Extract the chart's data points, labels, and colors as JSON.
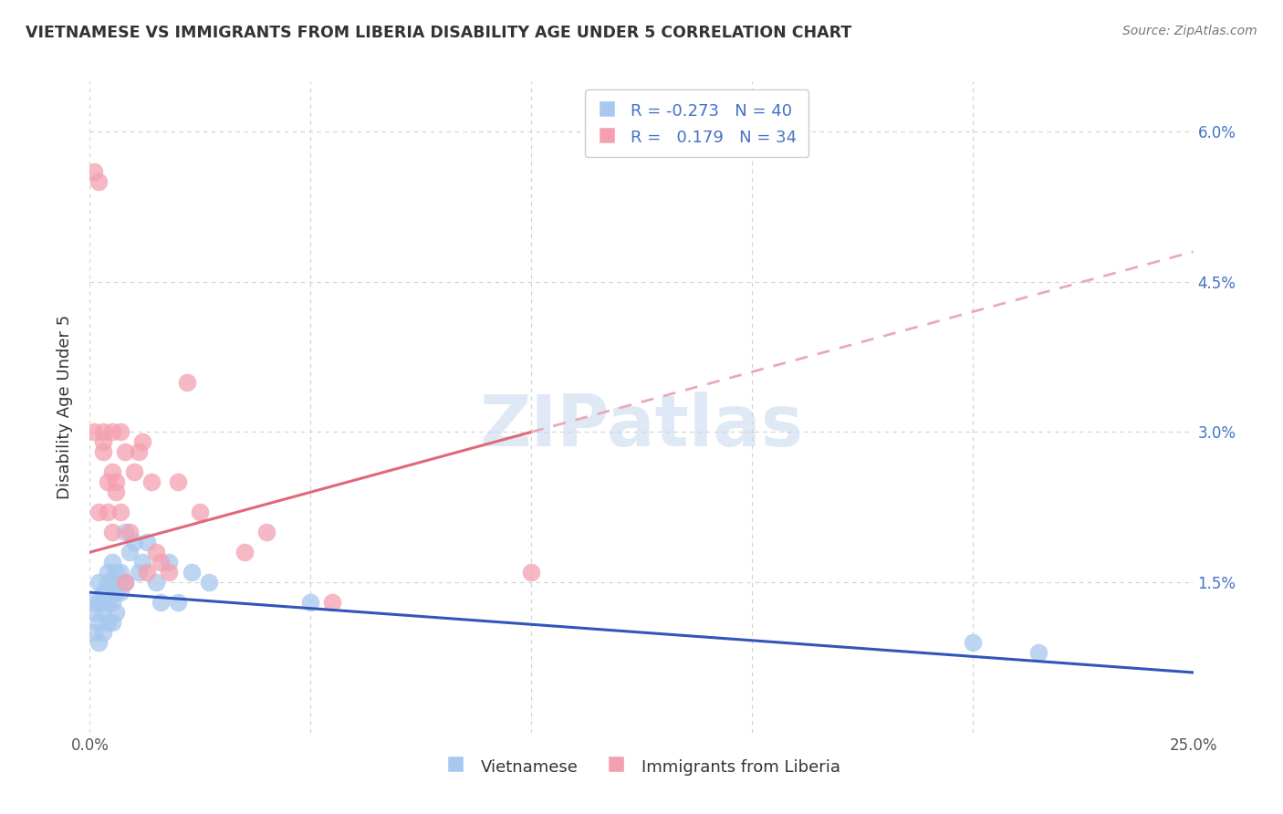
{
  "title": "VIETNAMESE VS IMMIGRANTS FROM LIBERIA DISABILITY AGE UNDER 5 CORRELATION CHART",
  "source": "Source: ZipAtlas.com",
  "ylabel_label": "Disability Age Under 5",
  "xlim": [
    0.0,
    0.25
  ],
  "ylim": [
    0.0,
    0.065
  ],
  "xtick_positions": [
    0.0,
    0.05,
    0.1,
    0.15,
    0.2,
    0.25
  ],
  "xtick_labels": [
    "0.0%",
    "",
    "",
    "",
    "",
    "25.0%"
  ],
  "ytick_positions": [
    0.0,
    0.015,
    0.03,
    0.045,
    0.06
  ],
  "ytick_labels_right": [
    "",
    "1.5%",
    "3.0%",
    "4.5%",
    "6.0%"
  ],
  "legend_entry1": "R = -0.273   N = 40",
  "legend_entry2": "R =   0.179   N = 34",
  "legend_label1": "Vietnamese",
  "legend_label2": "Immigrants from Liberia",
  "color_blue": "#A8C8EE",
  "color_pink": "#F4A0B0",
  "line_color_blue": "#3355BB",
  "line_color_pink": "#E06878",
  "line_color_pink_dashed": "#E8AABB",
  "background_color": "#FFFFFF",
  "grid_color": "#CCCCCC",
  "watermark": "ZIPatlas",
  "viet_x": [
    0.001,
    0.001,
    0.001,
    0.002,
    0.002,
    0.002,
    0.002,
    0.003,
    0.003,
    0.003,
    0.003,
    0.004,
    0.004,
    0.004,
    0.004,
    0.005,
    0.005,
    0.005,
    0.005,
    0.006,
    0.006,
    0.006,
    0.007,
    0.007,
    0.008,
    0.008,
    0.009,
    0.01,
    0.011,
    0.012,
    0.013,
    0.015,
    0.016,
    0.018,
    0.02,
    0.023,
    0.027,
    0.05,
    0.2,
    0.215
  ],
  "viet_y": [
    0.013,
    0.012,
    0.01,
    0.015,
    0.013,
    0.011,
    0.009,
    0.014,
    0.013,
    0.012,
    0.01,
    0.016,
    0.015,
    0.013,
    0.011,
    0.017,
    0.015,
    0.013,
    0.011,
    0.016,
    0.014,
    0.012,
    0.016,
    0.014,
    0.02,
    0.015,
    0.018,
    0.019,
    0.016,
    0.017,
    0.019,
    0.015,
    0.013,
    0.017,
    0.013,
    0.016,
    0.015,
    0.013,
    0.009,
    0.008
  ],
  "lib_x": [
    0.001,
    0.001,
    0.002,
    0.002,
    0.003,
    0.003,
    0.003,
    0.004,
    0.004,
    0.005,
    0.005,
    0.005,
    0.006,
    0.006,
    0.007,
    0.007,
    0.008,
    0.008,
    0.009,
    0.01,
    0.011,
    0.012,
    0.013,
    0.014,
    0.015,
    0.016,
    0.018,
    0.02,
    0.022,
    0.025,
    0.035,
    0.04,
    0.055,
    0.1
  ],
  "lib_y": [
    0.056,
    0.03,
    0.055,
    0.022,
    0.03,
    0.029,
    0.028,
    0.025,
    0.022,
    0.03,
    0.026,
    0.02,
    0.025,
    0.024,
    0.03,
    0.022,
    0.028,
    0.015,
    0.02,
    0.026,
    0.028,
    0.029,
    0.016,
    0.025,
    0.018,
    0.017,
    0.016,
    0.025,
    0.035,
    0.022,
    0.018,
    0.02,
    0.013,
    0.016
  ],
  "viet_line_x0": 0.0,
  "viet_line_y0": 0.014,
  "viet_line_x1": 0.25,
  "viet_line_y1": 0.006,
  "lib_line_solid_x0": 0.0,
  "lib_line_solid_y0": 0.018,
  "lib_line_solid_x1": 0.1,
  "lib_line_solid_y1": 0.03,
  "lib_line_dash_x0": 0.1,
  "lib_line_dash_y0": 0.03,
  "lib_line_dash_x1": 0.25,
  "lib_line_dash_y1": 0.048
}
